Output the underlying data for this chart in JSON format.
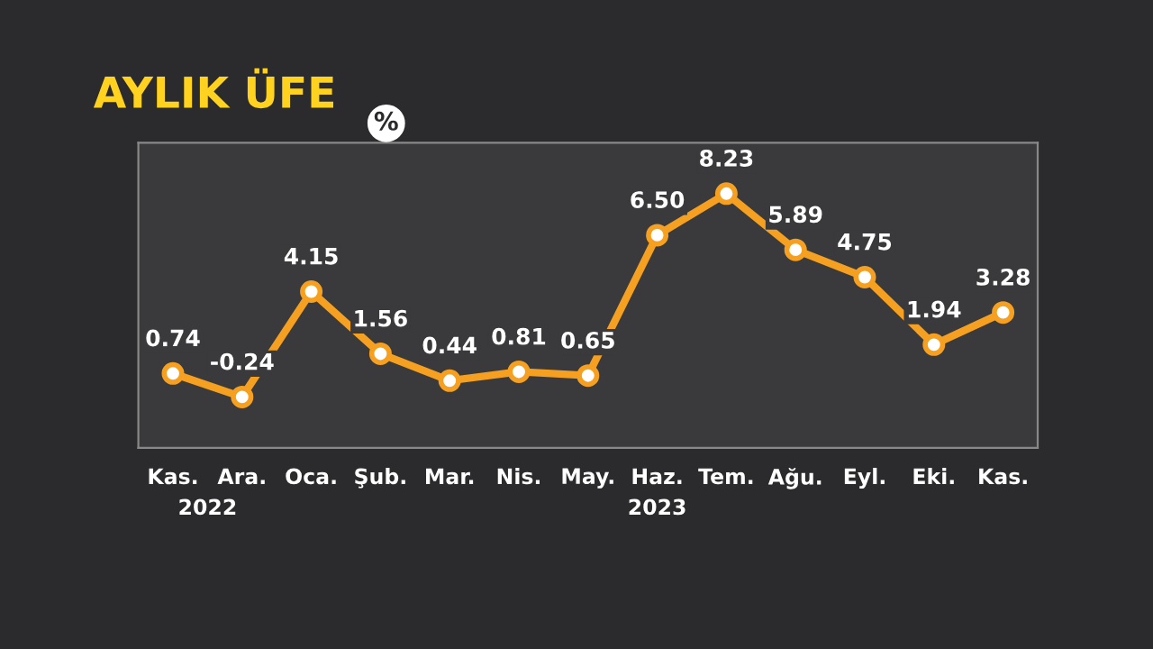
{
  "chart_data": {
    "type": "line",
    "title": "AYLIK ÜFE",
    "categories": [
      "Kas.",
      "Ara.",
      "Oca.",
      "Şub.",
      "Mar.",
      "Nis.",
      "May.",
      "Haz.",
      "Tem.",
      "Ağu.",
      "Eyl.",
      "Eki.",
      "Kas."
    ],
    "series": [
      {
        "color": "#f5a020",
        "values": [
          0.74,
          -0.24,
          4.15,
          1.56,
          0.44,
          0.81,
          0.65,
          6.5,
          8.23,
          5.89,
          4.75,
          1.94,
          3.28
        ],
        "value_labels": [
          "0.74",
          "-0.24",
          "4.15",
          "1.56",
          "0.44",
          "0.81",
          "0.65",
          "6.50",
          "8.23",
          "5.89",
          "4.75",
          "1.94",
          "3.28"
        ]
      }
    ],
    "marker": "circle",
    "line_style": "solid",
    "annotations": [
      "%",
      "2022",
      "2023"
    ]
  }
}
